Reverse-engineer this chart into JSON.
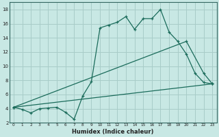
{
  "xlabel": "Humidex (Indice chaleur)",
  "bg_color": "#c8e8e4",
  "grid_color": "#a8ccc8",
  "line_color": "#1a6b5a",
  "line1_x": [
    0,
    1,
    2,
    3,
    4,
    5,
    6,
    7,
    8,
    9,
    10,
    11,
    12,
    13,
    14,
    15,
    16,
    17,
    18,
    19,
    20,
    21,
    22,
    23
  ],
  "line1_y": [
    4.2,
    3.9,
    3.4,
    4.0,
    4.1,
    4.2,
    3.5,
    2.5,
    5.8,
    7.8,
    15.4,
    15.8,
    16.2,
    17.0,
    15.2,
    16.7,
    16.7,
    18.0,
    14.8,
    13.5,
    11.7,
    9.0,
    7.7,
    7.5
  ],
  "line2_x": [
    0,
    20,
    22,
    23
  ],
  "line2_y": [
    4.2,
    13.5,
    9.0,
    7.5
  ],
  "line3_x": [
    0,
    23
  ],
  "line3_y": [
    4.2,
    7.5
  ],
  "ylim": [
    2,
    19
  ],
  "xlim": [
    -0.5,
    23.5
  ],
  "yticks": [
    2,
    4,
    6,
    8,
    10,
    12,
    14,
    16,
    18
  ],
  "xticks": [
    0,
    1,
    2,
    3,
    4,
    5,
    6,
    7,
    8,
    9,
    10,
    11,
    12,
    13,
    14,
    15,
    16,
    17,
    18,
    19,
    20,
    21,
    22,
    23
  ]
}
